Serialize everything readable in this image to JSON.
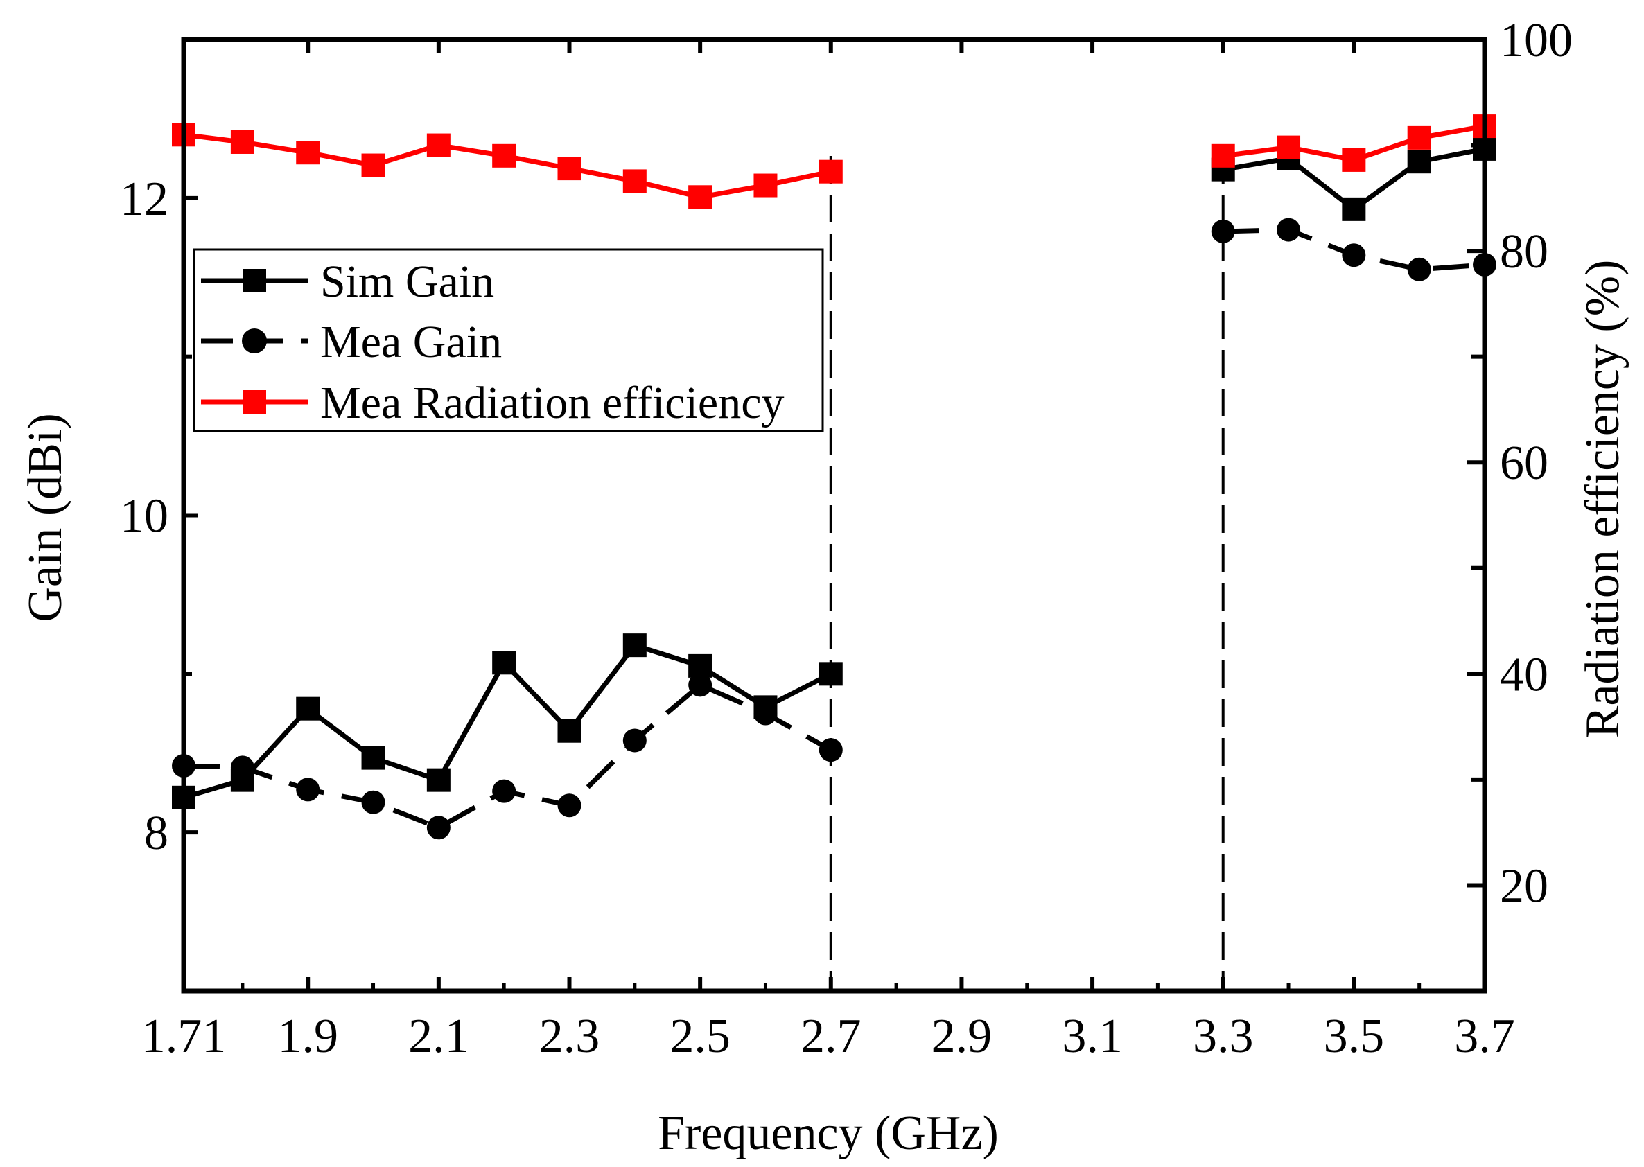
{
  "chart_data": {
    "type": "line",
    "title": "",
    "xlabel": "Frequency (GHz)",
    "ylabel": "Gain (dBi)",
    "y2label": "Radiation efficiency (%)",
    "xlim": [
      1.71,
      3.7
    ],
    "ylim": [
      7,
      13
    ],
    "y2lim": [
      10,
      100
    ],
    "x_ticks": [
      1.71,
      1.9,
      2.1,
      2.3,
      2.5,
      2.7,
      2.9,
      3.1,
      3.3,
      3.5,
      3.7
    ],
    "x_tick_labels": [
      "1.71",
      "1.9",
      "2.1",
      "2.3",
      "2.5",
      "2.7",
      "2.9",
      "3.1",
      "3.3",
      "3.5",
      "3.7"
    ],
    "y_ticks": [
      8,
      10,
      12
    ],
    "y_tick_labels": [
      "8",
      "10",
      "12"
    ],
    "y2_ticks": [
      20,
      40,
      60,
      80,
      100
    ],
    "y2_tick_labels": [
      "20",
      "40",
      "60",
      "80",
      "100"
    ],
    "legend_position": "upper-left",
    "vertical_markers": [
      2.7,
      3.3
    ],
    "series": [
      {
        "name": "Sim Gain",
        "axis": "left",
        "color": "#000000",
        "line": "solid",
        "marker": "square",
        "segments": [
          {
            "x": [
              1.71,
              1.8,
              1.9,
              2.0,
              2.1,
              2.2,
              2.3,
              2.4,
              2.5,
              2.6,
              2.7
            ],
            "y": [
              8.22,
              8.33,
              8.78,
              8.47,
              8.33,
              9.07,
              8.64,
              9.18,
              9.05,
              8.79,
              9.0
            ]
          },
          {
            "x": [
              3.3,
              3.4,
              3.5,
              3.6,
              3.7
            ],
            "y": [
              12.18,
              12.25,
              11.93,
              12.23,
              12.31
            ]
          }
        ]
      },
      {
        "name": "Mea Gain",
        "axis": "left",
        "color": "#000000",
        "line": "dashed",
        "marker": "circle",
        "segments": [
          {
            "x": [
              1.71,
              1.8,
              1.9,
              2.0,
              2.1,
              2.2,
              2.3,
              2.4,
              2.5,
              2.6,
              2.7
            ],
            "y": [
              8.42,
              8.41,
              8.27,
              8.19,
              8.03,
              8.26,
              8.17,
              8.58,
              8.93,
              8.75,
              8.52
            ]
          },
          {
            "x": [
              3.3,
              3.4,
              3.5,
              3.6,
              3.7
            ],
            "y": [
              11.79,
              11.8,
              11.64,
              11.55,
              11.58
            ]
          }
        ]
      },
      {
        "name": "Mea Radiation efficiency",
        "axis": "right",
        "color": "#ff0000",
        "line": "solid",
        "marker": "square",
        "segments": [
          {
            "x": [
              1.71,
              1.8,
              1.9,
              2.0,
              2.1,
              2.2,
              2.3,
              2.4,
              2.5,
              2.6,
              2.7
            ],
            "y": [
              91.0,
              90.3,
              89.3,
              88.1,
              90.0,
              89.0,
              87.8,
              86.6,
              85.1,
              86.2,
              87.5
            ]
          },
          {
            "x": [
              3.3,
              3.4,
              3.5,
              3.6,
              3.7
            ],
            "y": [
              89.0,
              89.8,
              88.6,
              90.7,
              91.8
            ]
          }
        ]
      }
    ]
  }
}
